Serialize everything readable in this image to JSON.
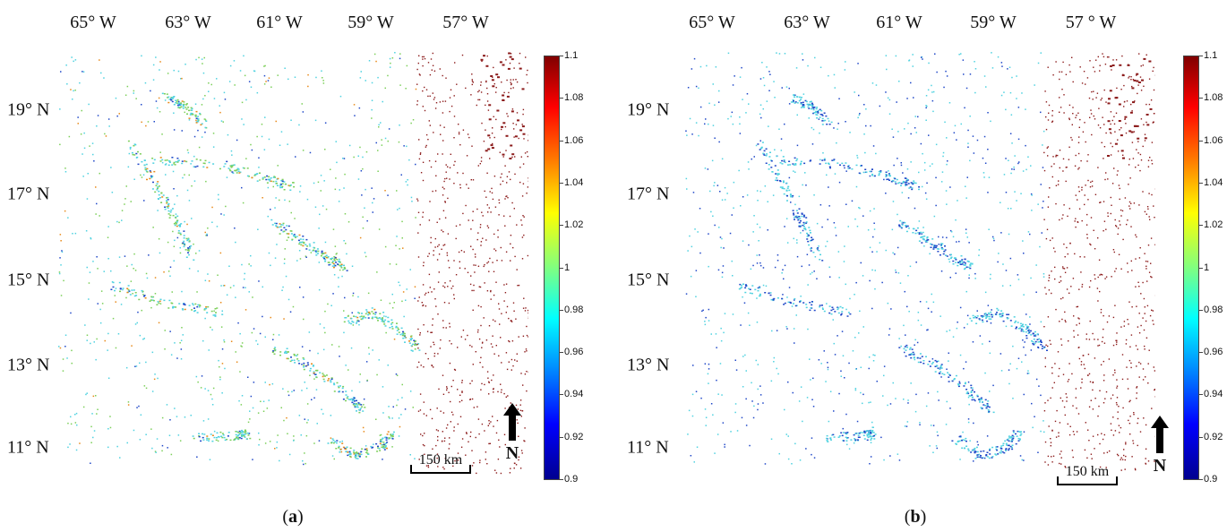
{
  "panels": [
    {
      "caption_open": "(",
      "caption_letter": "a",
      "caption_close": ")",
      "longitudes": [
        "65° W",
        "63° W",
        "61° W",
        "59° W",
        "57° W"
      ],
      "latitudes": [
        "19° N",
        "17° N",
        "15° N",
        "13° N",
        "11° N"
      ],
      "scale_label": "150 km",
      "north_label": "N",
      "colorbar": {
        "ticks": [
          "1.1",
          "1.08",
          "1.06",
          "1.04",
          "1.02",
          "1",
          "0.98",
          "0.96",
          "0.94",
          "0.92",
          "0.9"
        ],
        "min": 0.9,
        "max": 1.1
      },
      "palette": "mixed"
    },
    {
      "caption_open": "(",
      "caption_letter": "b",
      "caption_close": ")",
      "longitudes": [
        "65° W",
        "63° W",
        "61° W",
        "59° W",
        "57 ° W"
      ],
      "latitudes": [
        "19° N",
        "17° N",
        "15° N",
        "13° N",
        "11° N"
      ],
      "scale_label": "150 km",
      "north_label": "N",
      "colorbar": {
        "ticks": [
          "1.1",
          "1.08",
          "1.06",
          "1.04",
          "1.02",
          "1",
          "0.98",
          "0.96",
          "0.94",
          "0.92",
          "0.9"
        ],
        "min": 0.9,
        "max": 1.1
      },
      "palette": "blue"
    }
  ],
  "colors": {
    "ratio_red": "#8b1a1a",
    "ratio_green": "#7ccf5a",
    "ratio_cyan": "#4fd2e0",
    "ratio_blue": "#2048c8",
    "ratio_orange": "#e88a1a"
  }
}
